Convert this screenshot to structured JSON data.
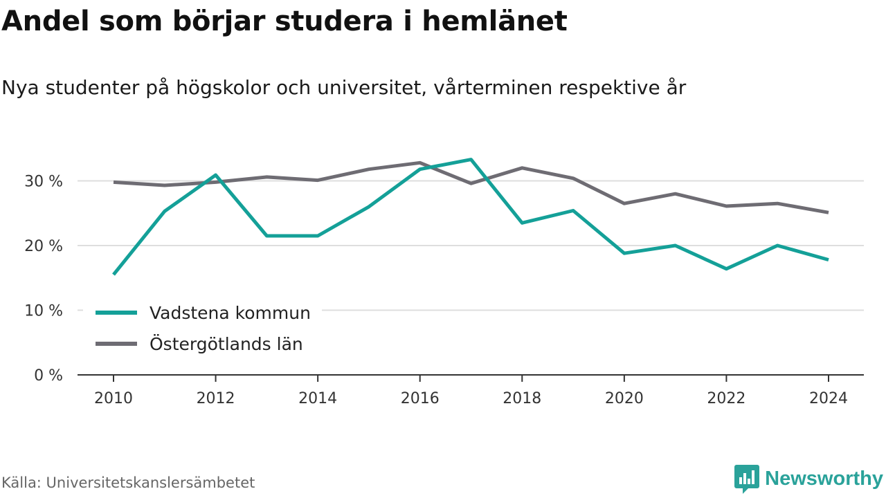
{
  "title": "Andel som börjar studera i hemlänet",
  "subtitle": "Nya studenter på högskolor och universitet, vårterminen respektive år",
  "source": "Källa: Universitetskanslersämbetet",
  "brand": "Newsworthy",
  "colors": {
    "vadstena": "#14a098",
    "ostergotland": "#6e6c73",
    "grid": "#dedede",
    "axis": "#333333",
    "brand": "#2aa29a"
  },
  "chart_data": {
    "type": "line",
    "title": "Andel som börjar studera i hemlänet",
    "subtitle": "Nya studenter på högskolor och universitet, vårterminen respektive år",
    "x": [
      2010,
      2011,
      2012,
      2013,
      2014,
      2015,
      2016,
      2017,
      2018,
      2019,
      2020,
      2021,
      2022,
      2023,
      2024
    ],
    "xticks": [
      2010,
      2012,
      2014,
      2016,
      2018,
      2020,
      2022,
      2024
    ],
    "xlim": [
      2010,
      2024
    ],
    "yticks": [
      0,
      10,
      20,
      30
    ],
    "ytick_labels": [
      "0 %",
      "10 %",
      "20 %",
      "30 %"
    ],
    "ylim": [
      0,
      33
    ],
    "grid": true,
    "legend_position": "bottom-left",
    "series": [
      {
        "name": "Vadstena kommun",
        "color": "#14a098",
        "values": [
          15.5,
          25.3,
          30.9,
          21.5,
          21.5,
          26.0,
          31.8,
          33.3,
          23.5,
          25.4,
          18.8,
          20.0,
          16.4,
          20.0,
          17.8
        ]
      },
      {
        "name": "Östergötlands län",
        "color": "#6e6c73",
        "values": [
          29.8,
          29.3,
          29.8,
          30.6,
          30.1,
          31.8,
          32.8,
          29.6,
          32.0,
          30.4,
          26.5,
          28.0,
          26.1,
          26.5,
          25.1
        ]
      }
    ]
  }
}
